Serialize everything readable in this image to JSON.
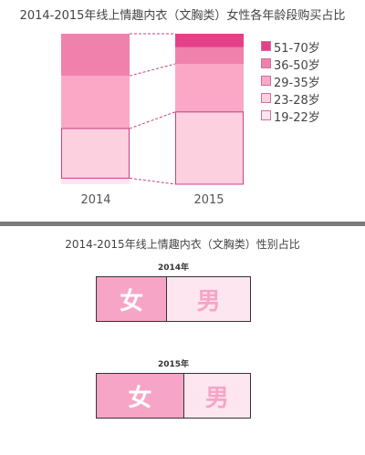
{
  "chart_data": [
    {
      "type": "bar",
      "stacked": true,
      "title": "2014-2015年线上情趣内衣（文胸类）女性各年龄段购买占比",
      "categories": [
        "2014",
        "2015"
      ],
      "series": [
        {
          "name": "19-22岁",
          "color": "#fde4ee",
          "values": [
            4,
            0
          ]
        },
        {
          "name": "23-28岁",
          "color": "#fdd0e0",
          "values": [
            33,
            48
          ]
        },
        {
          "name": "29-35岁",
          "color": "#fba8c7",
          "values": [
            35,
            32
          ]
        },
        {
          "name": "36-50岁",
          "color": "#f081ad",
          "values": [
            28,
            11
          ]
        },
        {
          "name": "51-70岁",
          "color": "#e43f87",
          "values": [
            0,
            9
          ]
        }
      ],
      "legend_order": [
        "51-70岁",
        "36-50岁",
        "29-35岁",
        "23-28岁",
        "19-22岁"
      ],
      "legend_position": "right",
      "ylim": [
        0,
        100
      ]
    },
    {
      "type": "bar",
      "stacked": true,
      "horizontal": true,
      "title": "2014-2015年线上情趣内衣（文胸类）性别占比",
      "categories": [
        "2014年",
        "2015年"
      ],
      "series": [
        {
          "name": "女",
          "color": "#f7a5c6",
          "values": [
            46,
            57
          ]
        },
        {
          "name": "男",
          "color": "#fde6ef",
          "values": [
            54,
            43
          ]
        }
      ],
      "xlim": [
        0,
        100
      ]
    }
  ]
}
